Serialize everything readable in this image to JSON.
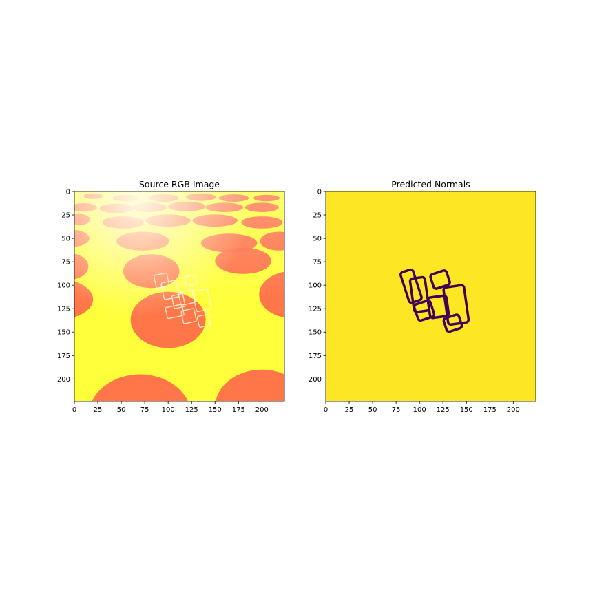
{
  "chart_data": [
    {
      "type": "image",
      "title": "Source RGB Image",
      "xlim": [
        0,
        224
      ],
      "ylim": [
        224,
        0
      ],
      "xticks": [
        0,
        25,
        50,
        75,
        100,
        125,
        150,
        175,
        200
      ],
      "yticks": [
        0,
        25,
        50,
        75,
        100,
        125,
        150,
        175,
        200
      ],
      "colors": {
        "base": "#ffff3c",
        "spot": "#ff6a4a",
        "glare": "#fffbe0"
      },
      "content": "rendered scene: yellow floor with red elliptical spots, transparent glass cubes near center"
    },
    {
      "type": "heatmap",
      "title": "Predicted Normals",
      "xlim": [
        0,
        224
      ],
      "ylim": [
        224,
        0
      ],
      "xticks": [
        0,
        25,
        50,
        75,
        100,
        125,
        150,
        175,
        200
      ],
      "yticks": [
        0,
        25,
        50,
        75,
        100,
        125,
        150,
        175,
        200
      ],
      "colors": {
        "background": "#fde725",
        "outline": "#440154"
      },
      "objects": [
        {
          "name": "cube-1",
          "x_range": [
            84,
            98
          ],
          "y_range": [
            84,
            118
          ]
        },
        {
          "name": "cube-2",
          "x_range": [
            92,
            108
          ],
          "y_range": [
            92,
            128
          ]
        },
        {
          "name": "cube-3",
          "x_range": [
            96,
            114
          ],
          "y_range": [
            118,
            136
          ]
        },
        {
          "name": "cube-4",
          "x_range": [
            110,
            130
          ],
          "y_range": [
            112,
            134
          ]
        },
        {
          "name": "cube-5",
          "x_range": [
            113,
            131
          ],
          "y_range": [
            86,
            102
          ]
        },
        {
          "name": "cube-6",
          "x_range": [
            128,
            150
          ],
          "y_range": [
            101,
            141
          ]
        },
        {
          "name": "cube-7",
          "x_range": [
            127,
            144
          ],
          "y_range": [
            133,
            148
          ]
        }
      ]
    }
  ]
}
